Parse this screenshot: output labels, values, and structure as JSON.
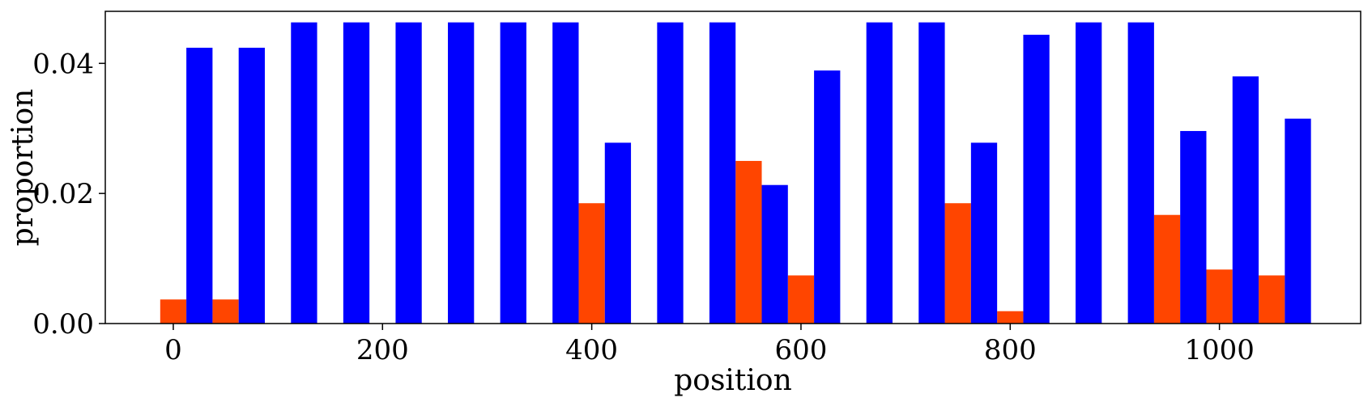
{
  "chart_data": {
    "type": "bar",
    "title": "",
    "xlabel": "position",
    "ylabel": "proportion",
    "xlim": [
      -65,
      1135
    ],
    "ylim": [
      0,
      0.048
    ],
    "bar_width": 25,
    "xticks": [
      0,
      200,
      400,
      600,
      800,
      1000
    ],
    "xtick_labels": [
      "0",
      "200",
      "400",
      "600",
      "800",
      "1000"
    ],
    "yticks": [
      0,
      0.02,
      0.04
    ],
    "ytick_labels": [
      "0.00",
      "0.02",
      "0.04"
    ],
    "grid": false,
    "series": [
      {
        "color": "#ff4500",
        "x": [
          0,
          50,
          100,
          150,
          200,
          250,
          300,
          350,
          400,
          450,
          500,
          550,
          600,
          650,
          700,
          750,
          800,
          850,
          900,
          950,
          1000,
          1050
        ],
        "values": [
          0.0037,
          0.0037,
          0,
          0,
          0,
          0,
          0,
          0,
          0.0185,
          0,
          0,
          0.025,
          0.0074,
          0,
          0,
          0.0185,
          0.0019,
          0,
          0,
          0.0167,
          0.0083,
          0.0074
        ]
      },
      {
        "color": "#0000ff",
        "x": [
          25,
          75,
          125,
          175,
          225,
          275,
          325,
          375,
          425,
          475,
          525,
          575,
          625,
          675,
          725,
          775,
          825,
          875,
          925,
          975,
          1025,
          1075
        ],
        "values": [
          0.0424,
          0.0424,
          0.0463,
          0.0463,
          0.0463,
          0.0463,
          0.0463,
          0.0463,
          0.0278,
          0.0463,
          0.0463,
          0.0213,
          0.0389,
          0.0463,
          0.0463,
          0.0278,
          0.0444,
          0.0463,
          0.0463,
          0.0296,
          0.038,
          0.0315
        ]
      }
    ]
  }
}
